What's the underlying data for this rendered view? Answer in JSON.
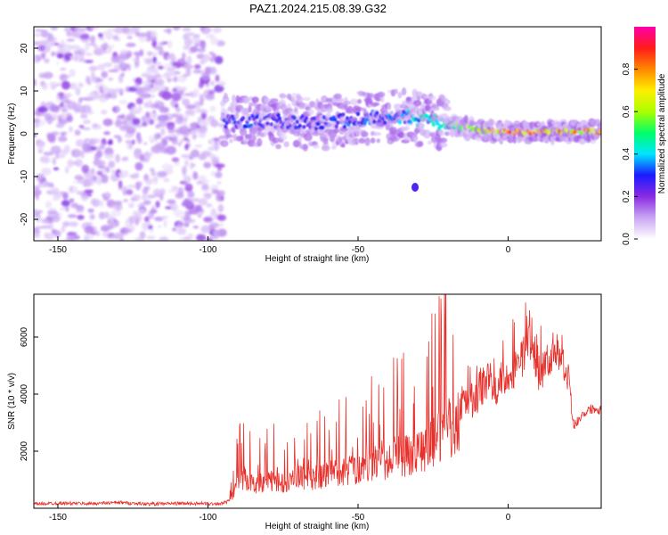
{
  "title": "PAZ1.2024.215.08.39.G32",
  "chart_data": [
    {
      "type": "heatmap",
      "title": "PAZ1.2024.215.08.39.G32",
      "xlabel": "Height of straight line (km)",
      "ylabel": "Frequency (Hz)",
      "xlim": [
        -158,
        31
      ],
      "ylim": [
        -25,
        25
      ],
      "xticks": [
        -150,
        -100,
        -50,
        0
      ],
      "yticks": [
        -20,
        -10,
        0,
        10,
        20
      ],
      "colorbar": {
        "label": "Normalized spectral amplitude",
        "range": [
          0,
          1
        ],
        "ticks": [
          0.0,
          0.2,
          0.4,
          0.6,
          0.8
        ],
        "tick_labels": [
          "0.0",
          "0.2",
          "0.4",
          "0.6",
          "0.8"
        ],
        "colors": [
          "#ffffff",
          "#c9a6f4",
          "#8a2be2",
          "#1a1aff",
          "#00e5ff",
          "#00ff66",
          "#aaff00",
          "#ffee00",
          "#ff8800",
          "#ff1a1a",
          "#ff00aa"
        ]
      },
      "regions": [
        {
          "name": "noise",
          "x": [
            -158,
            -95
          ],
          "y": [
            -25,
            25
          ],
          "amplitude": 0.12
        },
        {
          "name": "signal-track",
          "x": [
            -95,
            31
          ],
          "y_center_at_x": [
            [
              -95,
              3
            ],
            [
              -80,
              3
            ],
            [
              -60,
              2.5
            ],
            [
              -45,
              4
            ],
            [
              -35,
              4
            ],
            [
              -25,
              3
            ],
            [
              -15,
              1.5
            ],
            [
              -5,
              0.5
            ],
            [
              5,
              0.3
            ],
            [
              15,
              0.5
            ],
            [
              31,
              0.5
            ]
          ],
          "amplitude_at_x": [
            [
              -95,
              0.3
            ],
            [
              -60,
              0.3
            ],
            [
              -40,
              0.35
            ],
            [
              -20,
              0.5
            ],
            [
              -10,
              0.7
            ],
            [
              0,
              0.9
            ],
            [
              10,
              0.85
            ],
            [
              31,
              0.75
            ]
          ]
        },
        {
          "name": "isolated-blob",
          "x": [
            -31,
            -31
          ],
          "y": [
            -12.5,
            -12.5
          ],
          "amplitude": 0.25
        }
      ]
    },
    {
      "type": "line",
      "xlabel": "Height of straight line (km)",
      "ylabel": "SNR (10 * v/v)",
      "xlim": [
        -158,
        31
      ],
      "ylim": [
        0,
        7500
      ],
      "xticks": [
        -150,
        -100,
        -50,
        0
      ],
      "yticks": [
        2000,
        4000,
        6000
      ],
      "color": "#e8302b",
      "x": [
        -158,
        -150,
        -140,
        -130,
        -120,
        -110,
        -100,
        -95,
        -92,
        -90,
        -88,
        -85,
        -80,
        -75,
        -70,
        -65,
        -60,
        -55,
        -50,
        -45,
        -40,
        -35,
        -30,
        -25,
        -22,
        -20,
        -18,
        -16,
        -14,
        -12,
        -10,
        -8,
        -6,
        -4,
        -2,
        0,
        2,
        4,
        6,
        8,
        10,
        12,
        14,
        16,
        18,
        20,
        21,
        22,
        24,
        26,
        28,
        31
      ],
      "y": [
        150,
        180,
        160,
        200,
        150,
        170,
        160,
        170,
        300,
        900,
        1100,
        800,
        1000,
        900,
        1100,
        1000,
        1200,
        1300,
        1400,
        1500,
        1600,
        1800,
        2000,
        2300,
        2500,
        2800,
        2600,
        3500,
        3800,
        3700,
        4000,
        4300,
        4600,
        4300,
        4500,
        4700,
        4900,
        5100,
        5600,
        6000,
        4600,
        5000,
        5300,
        5700,
        5200,
        4800,
        3300,
        2900,
        3200,
        3400,
        3500,
        3450
      ]
    }
  ]
}
